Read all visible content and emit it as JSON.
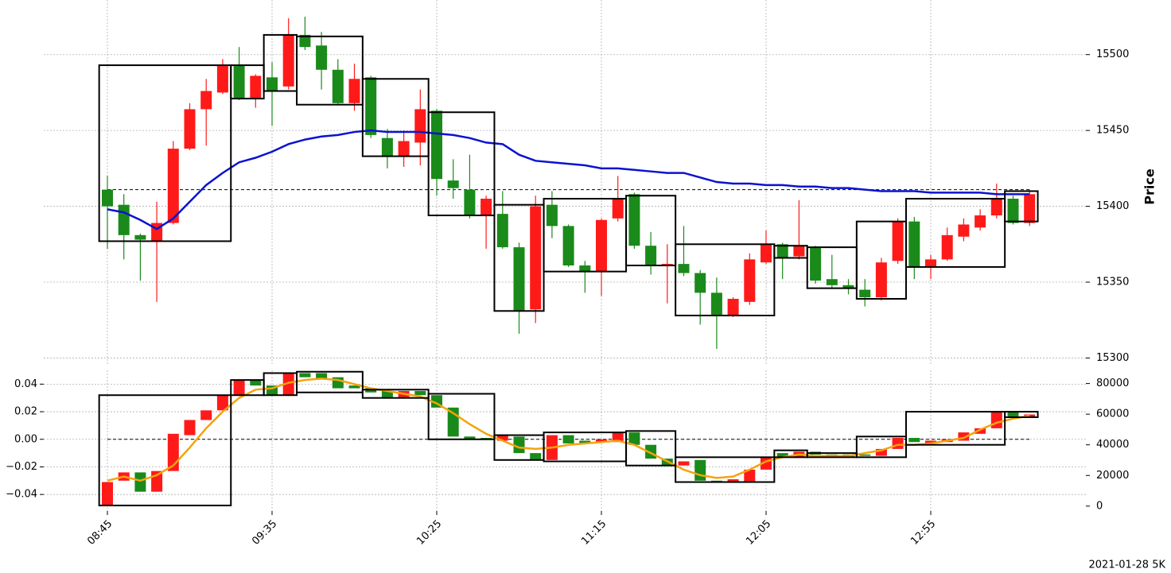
{
  "chart_data": [
    {
      "type": "candlestick",
      "ylabel": "Price",
      "up_color": "#ff1a1a",
      "down_color": "#1a8a1a",
      "open": [
        15411,
        15401,
        15381,
        15377,
        15389,
        15438,
        15464,
        15475,
        15493,
        15471,
        15485,
        15479,
        15513,
        15506,
        15490,
        15468,
        15485,
        15445,
        15433,
        15442,
        15463,
        15417,
        15411,
        15394,
        15395,
        15373,
        15332,
        15401,
        15387,
        15361,
        15357,
        15392,
        15408,
        15374,
        15361,
        15362,
        15356,
        15343,
        15328,
        15337,
        15363,
        15375,
        15367,
        15373,
        15352,
        15348,
        15345,
        15340,
        15364,
        15390,
        15360,
        15365,
        15380,
        15386,
        15394,
        15405,
        15389
      ],
      "high": [
        15420,
        15408,
        15382,
        15403,
        15443,
        15468,
        15484,
        15497,
        15505,
        15487,
        15495,
        15524,
        15525,
        15515,
        15497,
        15494,
        15486,
        15451,
        15450,
        15477,
        15464,
        15431,
        15434,
        15407,
        15410,
        15376,
        15407,
        15410,
        15388,
        15364,
        15392,
        15420,
        15409,
        15383,
        15375,
        15387,
        15358,
        15353,
        15340,
        15369,
        15384,
        15376,
        15404,
        15374,
        15368,
        15352,
        15352,
        15366,
        15392,
        15393,
        15368,
        15386,
        15392,
        15398,
        15415,
        15407,
        15411
      ],
      "low": [
        15372,
        15365,
        15351,
        15337,
        15388,
        15437,
        15440,
        15474,
        15470,
        15465,
        15453,
        15477,
        15503,
        15477,
        15467,
        15463,
        15445,
        15425,
        15426,
        15427,
        15407,
        15405,
        15392,
        15372,
        15372,
        15316,
        15323,
        15379,
        15360,
        15343,
        15341,
        15390,
        15372,
        15355,
        15336,
        15354,
        15322,
        15306,
        15327,
        15335,
        15362,
        15352,
        15365,
        15349,
        15346,
        15342,
        15334,
        15338,
        15362,
        15352,
        15352,
        15364,
        15377,
        15384,
        15392,
        15388,
        15387
      ],
      "close": [
        15400,
        15381,
        15378,
        15389,
        15438,
        15464,
        15476,
        15493,
        15471,
        15486,
        15476,
        15513,
        15505,
        15490,
        15468,
        15484,
        15447,
        15433,
        15443,
        15464,
        15418,
        15412,
        15394,
        15405,
        15373,
        15331,
        15400,
        15387,
        15361,
        15357,
        15391,
        15405,
        15374,
        15361,
        15362,
        15356,
        15343,
        15328,
        15339,
        15365,
        15375,
        15366,
        15374,
        15351,
        15348,
        15346,
        15340,
        15363,
        15390,
        15360,
        15365,
        15381,
        15388,
        15394,
        15405,
        15389,
        15408
      ],
      "lines": [
        {
          "color": "#0b12d0",
          "values": [
            15398,
            15396,
            15391,
            15385,
            15392,
            15403,
            15414,
            15422,
            15429,
            15432,
            15436,
            15441,
            15444,
            15446,
            15447,
            15449,
            15450,
            15449,
            15449,
            15449,
            15448,
            15447,
            15445,
            15442,
            15441,
            15434,
            15430,
            15429,
            15428,
            15427,
            15425,
            15425,
            15424,
            15423,
            15422,
            15422,
            15419,
            15416,
            15415,
            15415,
            15414,
            15414,
            15413,
            15413,
            15412,
            15412,
            15411,
            15410,
            15410,
            15410,
            15409,
            15409,
            15409,
            15409,
            15408,
            15408,
            15408
          ]
        }
      ],
      "boxes": [
        {
          "start": 0,
          "end": 7,
          "high": 15493,
          "low": 15377
        },
        {
          "start": 8,
          "end": 9,
          "high": 15493,
          "low": 15471
        },
        {
          "start": 10,
          "end": 11,
          "high": 15513,
          "low": 15476
        },
        {
          "start": 12,
          "end": 15,
          "high": 15512,
          "low": 15467
        },
        {
          "start": 16,
          "end": 19,
          "high": 15484,
          "low": 15433
        },
        {
          "start": 20,
          "end": 23,
          "high": 15462,
          "low": 15394
        },
        {
          "start": 24,
          "end": 26,
          "high": 15401,
          "low": 15331
        },
        {
          "start": 27,
          "end": 31,
          "high": 15405,
          "low": 15357
        },
        {
          "start": 32,
          "end": 34,
          "high": 15407,
          "low": 15361
        },
        {
          "start": 35,
          "end": 40,
          "high": 15375,
          "low": 15328
        },
        {
          "start": 41,
          "end": 42,
          "high": 15374,
          "low": 15366
        },
        {
          "start": 43,
          "end": 45,
          "high": 15373,
          "low": 15346
        },
        {
          "start": 46,
          "end": 48,
          "high": 15390,
          "low": 15339
        },
        {
          "start": 49,
          "end": 54,
          "high": 15405,
          "low": 15360
        },
        {
          "start": 55,
          "end": 56,
          "high": 15410,
          "low": 15390
        }
      ],
      "hline": 15411,
      "ylim": [
        15295,
        15536
      ],
      "yticks": [
        15300,
        15350,
        15400,
        15450,
        15500
      ],
      "grid": true
    },
    {
      "type": "candlestick",
      "up_color": "#ff1a1a",
      "down_color": "#1a8a1a",
      "categories": [
        "08:45",
        null,
        null,
        null,
        null,
        null,
        null,
        null,
        null,
        null,
        "09:35",
        null,
        null,
        null,
        null,
        null,
        null,
        null,
        null,
        null,
        "10:25",
        null,
        null,
        null,
        null,
        null,
        null,
        null,
        null,
        null,
        "11:15",
        null,
        null,
        null,
        null,
        null,
        null,
        null,
        null,
        null,
        "12:05",
        null,
        null,
        null,
        null,
        null,
        null,
        null,
        null,
        null,
        "12:55",
        null,
        null,
        null,
        null,
        null,
        null
      ],
      "open": [
        -0.048,
        -0.03,
        -0.024,
        -0.038,
        -0.023,
        0.003,
        0.014,
        0.021,
        0.032,
        0.043,
        0.039,
        0.032,
        0.048,
        0.048,
        0.045,
        0.039,
        0.037,
        0.035,
        0.03,
        0.035,
        0.032,
        0.023,
        0.002,
        0.001,
        -0.001,
        0.002,
        -0.01,
        -0.015,
        0.003,
        -0.001,
        -0.002,
        -0.002,
        0.005,
        -0.004,
        -0.014,
        -0.019,
        -0.015,
        -0.03,
        -0.031,
        -0.031,
        -0.022,
        -0.01,
        -0.013,
        -0.009,
        -0.011,
        -0.011,
        -0.011,
        -0.012,
        -0.007,
        0.001,
        -0.003,
        -0.002,
        -0.001,
        0.004,
        0.008,
        0.02,
        0.016
      ],
      "close": [
        -0.031,
        -0.024,
        -0.038,
        -0.023,
        0.004,
        0.014,
        0.021,
        0.032,
        0.043,
        0.039,
        0.032,
        0.048,
        0.045,
        0.044,
        0.037,
        0.037,
        0.034,
        0.03,
        0.035,
        0.032,
        0.023,
        0.002,
        0.0,
        0.0,
        0.003,
        -0.01,
        -0.015,
        0.003,
        -0.003,
        -0.003,
        0.0,
        0.005,
        -0.004,
        -0.014,
        -0.019,
        -0.016,
        -0.03,
        -0.031,
        -0.029,
        -0.022,
        -0.013,
        -0.013,
        -0.009,
        -0.011,
        -0.013,
        -0.013,
        -0.012,
        -0.007,
        0.001,
        -0.002,
        -0.001,
        0.0,
        0.005,
        0.008,
        0.02,
        0.016,
        0.018
      ],
      "lines": [
        {
          "color": "#f5a30c",
          "values": [
            -0.03,
            -0.027,
            -0.03,
            -0.026,
            -0.019,
            -0.006,
            0.008,
            0.02,
            0.03,
            0.036,
            0.037,
            0.041,
            0.043,
            0.044,
            0.043,
            0.04,
            0.037,
            0.035,
            0.033,
            0.031,
            0.026,
            0.019,
            0.011,
            0.004,
            -0.001,
            -0.006,
            -0.007,
            -0.006,
            -0.004,
            -0.003,
            -0.002,
            -0.001,
            -0.004,
            -0.01,
            -0.016,
            -0.022,
            -0.026,
            -0.028,
            -0.027,
            -0.022,
            -0.016,
            -0.013,
            -0.011,
            -0.012,
            -0.012,
            -0.012,
            -0.01,
            -0.008,
            -0.004,
            -0.004,
            -0.003,
            -0.001,
            0.001,
            0.007,
            0.012,
            0.015,
            0.017
          ]
        }
      ],
      "boxes": [
        {
          "start": 0,
          "end": 7,
          "high": 0.032,
          "low": -0.048
        },
        {
          "start": 8,
          "end": 9,
          "high": 0.043,
          "low": 0.032
        },
        {
          "start": 10,
          "end": 11,
          "high": 0.048,
          "low": 0.032
        },
        {
          "start": 12,
          "end": 15,
          "high": 0.049,
          "low": 0.034
        },
        {
          "start": 16,
          "end": 19,
          "high": 0.036,
          "low": 0.03
        },
        {
          "start": 20,
          "end": 23,
          "high": 0.033,
          "low": 0.0
        },
        {
          "start": 24,
          "end": 26,
          "high": 0.003,
          "low": -0.015
        },
        {
          "start": 27,
          "end": 31,
          "high": 0.005,
          "low": -0.016
        },
        {
          "start": 32,
          "end": 34,
          "high": 0.006,
          "low": -0.019
        },
        {
          "start": 35,
          "end": 40,
          "high": -0.013,
          "low": -0.031
        },
        {
          "start": 41,
          "end": 42,
          "high": -0.008,
          "low": -0.013
        },
        {
          "start": 43,
          "end": 45,
          "high": -0.01,
          "low": -0.013
        },
        {
          "start": 46,
          "end": 48,
          "high": 0.002,
          "low": -0.013
        },
        {
          "start": 49,
          "end": 54,
          "high": 0.02,
          "low": -0.004
        },
        {
          "start": 55,
          "end": 56,
          "high": 0.02,
          "low": 0.016
        }
      ],
      "hline": 0,
      "ylim": [
        -0.052,
        0.05
      ],
      "yticks": [
        {
          "value": -0.04,
          "label": "−0.04"
        },
        {
          "value": -0.02,
          "label": "−0.02"
        },
        {
          "value": 0,
          "label": "0.00"
        },
        {
          "value": 0.02,
          "label": "0.02"
        },
        {
          "value": 0.04,
          "label": "0.04"
        }
      ],
      "y2lim": [
        -3200,
        88600
      ],
      "y2ticks": [
        0,
        20000,
        40000,
        60000,
        80000
      ],
      "grid": true
    }
  ],
  "footer": "2021-01-28 5K"
}
